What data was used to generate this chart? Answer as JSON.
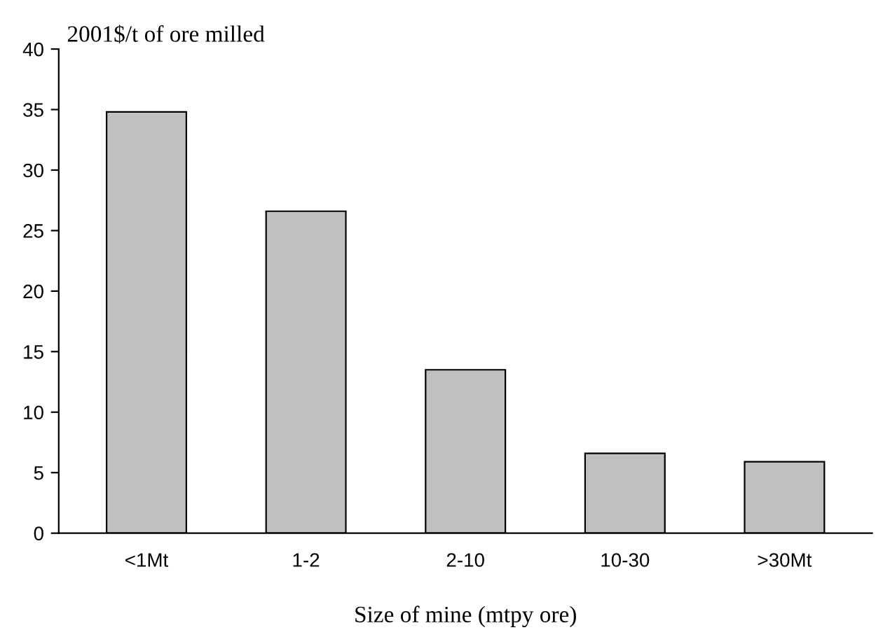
{
  "chart_data": {
    "type": "bar",
    "ylabel": "2001$/t of ore milled",
    "xlabel": "Size of mine (mtpy ore)",
    "categories": [
      "<1Mt",
      "1-2",
      "2-10",
      "10-30",
      ">30Mt"
    ],
    "values": [
      34.8,
      26.6,
      13.5,
      6.6,
      5.9
    ],
    "color": "#c0c0c0",
    "ylim": [
      0,
      40
    ],
    "yticks": [
      0,
      5,
      10,
      15,
      20,
      25,
      30,
      35,
      40
    ],
    "grid": false,
    "legend": false
  }
}
